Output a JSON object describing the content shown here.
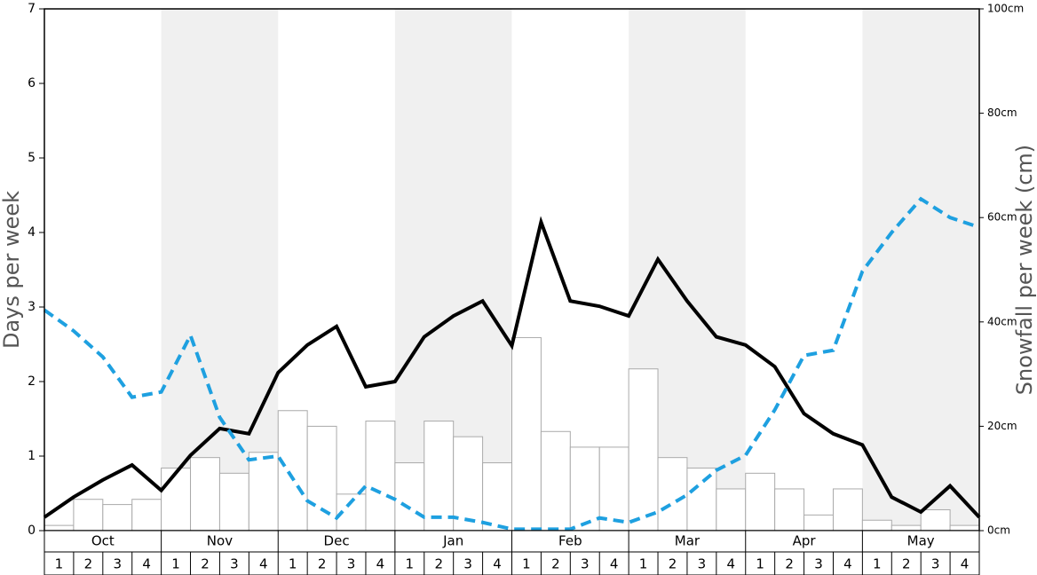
{
  "chart_data": {
    "type": "bar-line",
    "ylabel": "Days per week",
    "y2label": "Snowfall per week (cm)",
    "months": [
      "Oct",
      "Nov",
      "Dec",
      "Jan",
      "Feb",
      "Mar",
      "Apr",
      "May"
    ],
    "categories": [
      "1",
      "2",
      "3",
      "4",
      "1",
      "2",
      "3",
      "4",
      "1",
      "2",
      "3",
      "4",
      "1",
      "2",
      "3",
      "4",
      "1",
      "2",
      "3",
      "4",
      "1",
      "2",
      "3",
      "4",
      "1",
      "2",
      "3",
      "4",
      "1",
      "2",
      "3",
      "4"
    ],
    "x": [
      0,
      1,
      2,
      3,
      4,
      5,
      6,
      7,
      8,
      9,
      10,
      11,
      12,
      13,
      14,
      15,
      16,
      17,
      18,
      19,
      20,
      21,
      22,
      23,
      24,
      25,
      26,
      27,
      28,
      29,
      30,
      31,
      32
    ],
    "xlim": [
      0,
      32
    ],
    "ylim": [
      0,
      7
    ],
    "yticks": [
      0,
      1,
      2,
      3,
      4,
      5,
      6,
      7
    ],
    "y2lim": [
      0,
      100
    ],
    "y2ticks": [
      {
        "value": 0,
        "label": "0cm"
      },
      {
        "value": 20,
        "label": "20cm"
      },
      {
        "value": 40,
        "label": "40cm"
      },
      {
        "value": 60,
        "label": "60cm"
      },
      {
        "value": 80,
        "label": "80cm"
      },
      {
        "value": 100,
        "label": "100cm"
      }
    ],
    "series": [
      {
        "type": "bar",
        "axis": "y2",
        "color": "#ffffff",
        "values": [
          1,
          6,
          5,
          6,
          12,
          14,
          11,
          15,
          23,
          20,
          7,
          21,
          13,
          21,
          18,
          13,
          37,
          19,
          16,
          16,
          31,
          14,
          12,
          8,
          11,
          8,
          3,
          8,
          2,
          1,
          4,
          1
        ]
      },
      {
        "type": "line",
        "color": "#000000",
        "values": [
          0.18,
          0.45,
          0.68,
          0.88,
          0.54,
          1.01,
          1.37,
          1.3,
          2.12,
          2.49,
          2.74,
          1.93,
          2.0,
          2.6,
          2.88,
          3.08,
          2.48,
          4.14,
          3.08,
          3.01,
          2.88,
          3.64,
          3.08,
          2.6,
          2.49,
          2.2,
          1.57,
          1.3,
          1.15,
          0.45,
          0.25,
          0.6,
          0.18
        ]
      },
      {
        "type": "line",
        "dashed": true,
        "color": "#1ea0e0",
        "values": [
          2.96,
          2.68,
          2.33,
          1.79,
          1.86,
          2.62,
          1.52,
          0.95,
          1.0,
          0.4,
          0.17,
          0.6,
          0.42,
          0.18,
          0.18,
          0.11,
          0.02,
          0.02,
          0.02,
          0.17,
          0.11,
          0.25,
          0.48,
          0.81,
          1.01,
          1.62,
          2.35,
          2.42,
          3.48,
          4.0,
          4.45,
          4.2,
          4.07
        ]
      }
    ]
  }
}
